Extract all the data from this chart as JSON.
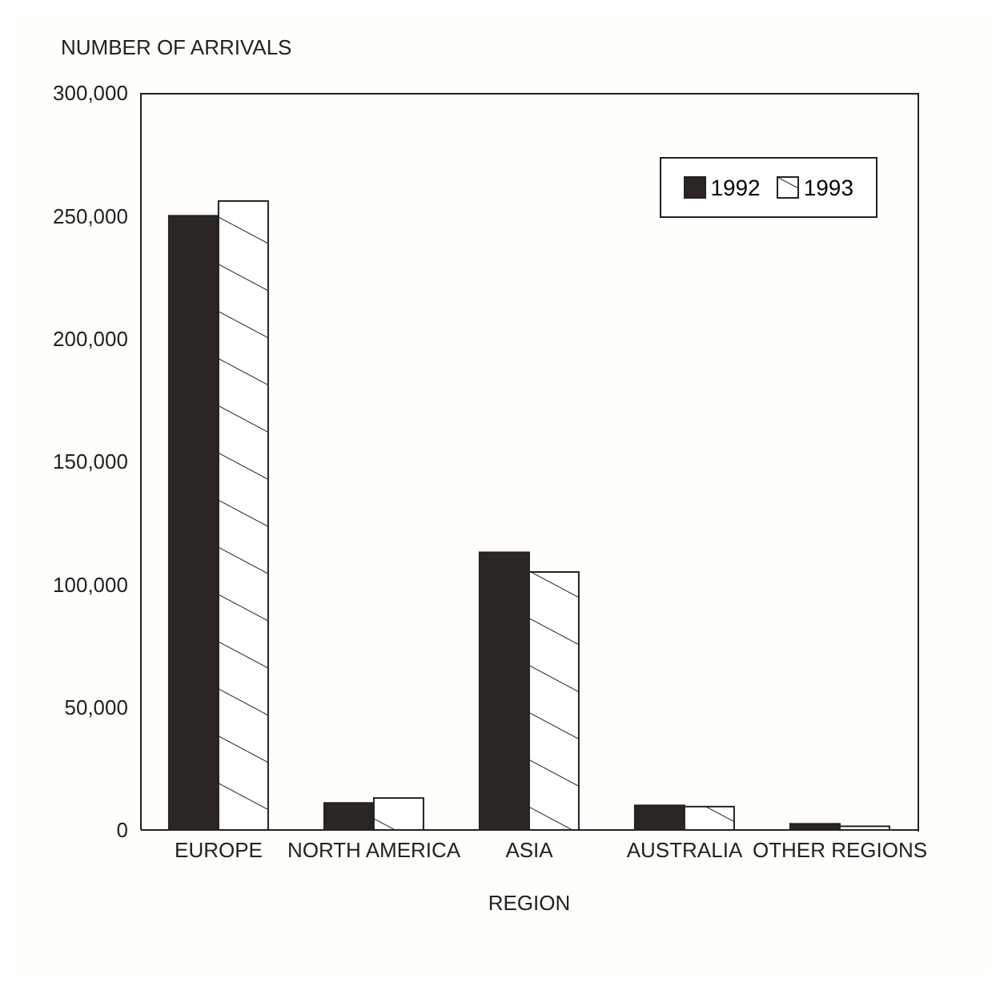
{
  "chart_data": {
    "type": "bar",
    "ylabel": "NUMBER OF ARRIVALS",
    "xlabel": "REGION",
    "categories": [
      "EUROPE",
      "NORTH AMERICA",
      "ASIA",
      "AUSTRALIA",
      "OTHER REGIONS"
    ],
    "series": [
      {
        "name": "1992",
        "color": "#2b2523",
        "values": [
          250000,
          11000,
          113000,
          10000,
          2500
        ]
      },
      {
        "name": "1993",
        "color": "#ffffff",
        "values": [
          256000,
          13000,
          105000,
          9500,
          1500
        ]
      }
    ],
    "ylim": [
      0,
      300000
    ],
    "yticks": [
      0,
      {
        "value": 50000,
        "label": "50,000"
      },
      {
        "value": 100000,
        "label": "100,000"
      },
      {
        "value": 150000,
        "label": "150,000"
      },
      {
        "value": 200000,
        "label": "200,000"
      },
      {
        "value": 250000,
        "label": "250,000"
      },
      {
        "value": 300000,
        "label": "300,000"
      }
    ],
    "legend": "top right"
  }
}
